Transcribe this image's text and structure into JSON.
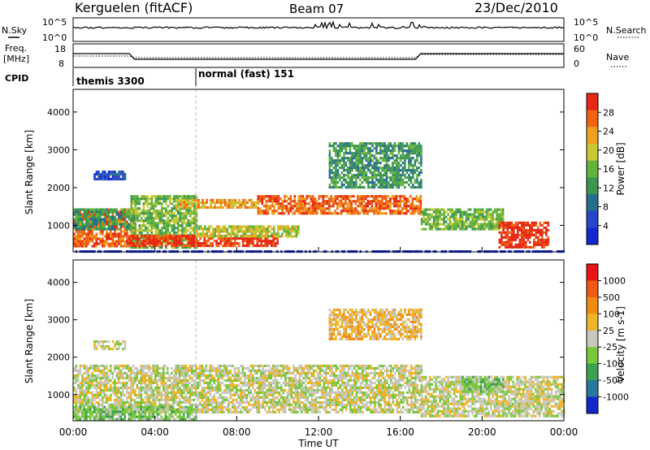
{
  "header": {
    "station": "Kerguelen (fitACF)",
    "beam": "Beam 07",
    "date": "23/Dec/2010"
  },
  "noise_panel": {
    "left_label": "N.Sky",
    "right_label": "N.Search",
    "left_ticks": [
      "10^5",
      "10^0"
    ],
    "right_ticks": [
      "10^5",
      "10^0"
    ]
  },
  "freq_panel": {
    "left_label_line1": "Freq.",
    "left_label_line2": "[MHz]",
    "right_label": "Nave",
    "left_ticks": [
      "18",
      "8"
    ],
    "right_ticks": [
      "60",
      "0"
    ]
  },
  "cpid": {
    "label": "CPID",
    "segments": [
      {
        "text": "themis 3300",
        "start_hour": 0
      },
      {
        "text": "normal (fast) 151",
        "start_hour": 6
      }
    ]
  },
  "x_axis": {
    "label": "Time UT",
    "ticks": [
      "00:00",
      "04:00",
      "08:00",
      "12:00",
      "16:00",
      "20:00",
      "00:00"
    ]
  },
  "chart_data": [
    {
      "type": "heatmap",
      "name_key": "power",
      "ylabel": "Slant Range [km]",
      "yticks": [
        "4000",
        "3000",
        "2000",
        "1000"
      ],
      "ylim": [
        300,
        4600
      ],
      "xlim_hours": [
        0,
        24
      ],
      "colorbar_label": "Power [dB]",
      "colorbar_ticks": [
        "28",
        "24",
        "20",
        "16",
        "12",
        "8",
        "4"
      ],
      "colors": [
        "#1428d2",
        "#2846c8",
        "#286e8c",
        "#3c9650",
        "#64b43c",
        "#c8c832",
        "#f0a020",
        "#f06414",
        "#e62814"
      ],
      "bands": [
        {
          "t": [
            0.0,
            3.0
          ],
          "r": [
            450,
            1450
          ],
          "level": 7
        },
        {
          "t": [
            0.0,
            3.0
          ],
          "r": [
            900,
            1450
          ],
          "level": 3
        },
        {
          "t": [
            2.8,
            6.0
          ],
          "r": [
            400,
            1800
          ],
          "level": 4
        },
        {
          "t": [
            2.6,
            10.0
          ],
          "r": [
            450,
            750
          ],
          "level": 8
        },
        {
          "t": [
            6.0,
            11.0
          ],
          "r": [
            700,
            1000
          ],
          "level": 5
        },
        {
          "t": [
            5.0,
            9.0
          ],
          "r": [
            1450,
            1700
          ],
          "level": 6
        },
        {
          "t": [
            9.0,
            17.0
          ],
          "r": [
            1300,
            1800
          ],
          "level": 7
        },
        {
          "t": [
            12.5,
            17.0
          ],
          "r": [
            2000,
            3200
          ],
          "level": 3
        },
        {
          "t": [
            17.0,
            21.0
          ],
          "r": [
            900,
            1450
          ],
          "level": 4
        },
        {
          "t": [
            20.8,
            23.2
          ],
          "r": [
            400,
            1100
          ],
          "level": 8
        },
        {
          "t": [
            1.0,
            2.5
          ],
          "r": [
            2200,
            2450
          ],
          "level": 1
        },
        {
          "t": [
            0.0,
            24.0
          ],
          "r": [
            300,
            340
          ],
          "level": 0
        }
      ]
    },
    {
      "type": "heatmap",
      "name_key": "velocity",
      "ylabel": "Slant Range [km]",
      "yticks": [
        "4000",
        "3000",
        "2000",
        "1000"
      ],
      "ylim": [
        300,
        4600
      ],
      "xlim_hours": [
        0,
        24
      ],
      "colorbar_label": "Velocity [m s-1]",
      "colorbar_ticks": [
        "1000",
        "500",
        "100",
        "25",
        "-25",
        "-100",
        "-500",
        "-1000"
      ],
      "colors": [
        "#1428c8",
        "#2878a0",
        "#3ca050",
        "#78c83c",
        "#c8c8c0",
        "#f0b428",
        "#f08c14",
        "#f05a14",
        "#e61414"
      ],
      "bands": [
        {
          "t": [
            0.0,
            17.0
          ],
          "r": [
            500,
            1800
          ],
          "level": 4
        },
        {
          "t": [
            0.0,
            6.0
          ],
          "r": [
            350,
            700
          ],
          "level": 3
        },
        {
          "t": [
            12.5,
            17.0
          ],
          "r": [
            2500,
            3300
          ],
          "level": 5
        },
        {
          "t": [
            17.0,
            24.0
          ],
          "r": [
            400,
            1500
          ],
          "level": 4
        },
        {
          "t": [
            19.0,
            21.0
          ],
          "r": [
            1100,
            1500
          ],
          "level": 3
        },
        {
          "t": [
            1.0,
            2.5
          ],
          "r": [
            2200,
            2450
          ],
          "level": 4
        }
      ]
    }
  ]
}
